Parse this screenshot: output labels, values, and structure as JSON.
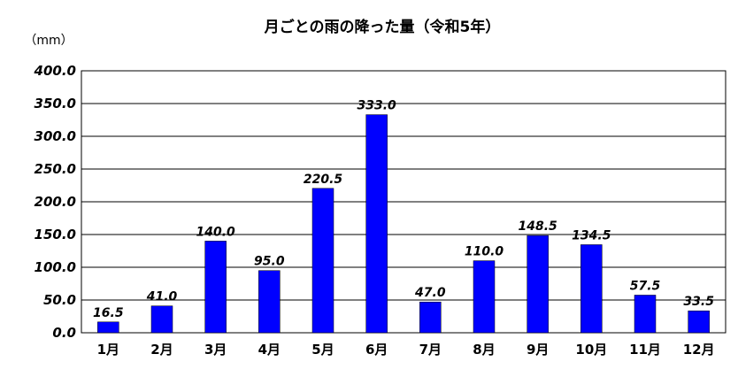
{
  "chart_data": {
    "type": "bar",
    "title": "月ごとの雨の降った量（令和5年）",
    "ylabel": "（mm）",
    "xlabel": "",
    "categories": [
      "1月",
      "2月",
      "3月",
      "4月",
      "5月",
      "6月",
      "7月",
      "8月",
      "9月",
      "10月",
      "11月",
      "12月"
    ],
    "values": [
      16.5,
      41.0,
      140.0,
      95.0,
      220.5,
      333.0,
      47.0,
      110.0,
      148.5,
      134.5,
      57.5,
      33.5
    ],
    "data_labels": [
      "16.5",
      "41.0",
      "140.0",
      "95.0",
      "220.5",
      "333.0",
      "47.0",
      "110.0",
      "148.5",
      "134.5",
      "57.5",
      "33.5"
    ],
    "ylim": [
      0,
      400
    ],
    "yticks": [
      "0.0",
      "50.0",
      "100.0",
      "150.0",
      "200.0",
      "250.0",
      "300.0",
      "350.0",
      "400.0"
    ],
    "grid": true,
    "bar_color": "#0000ff",
    "gridline_color": "#000000"
  }
}
